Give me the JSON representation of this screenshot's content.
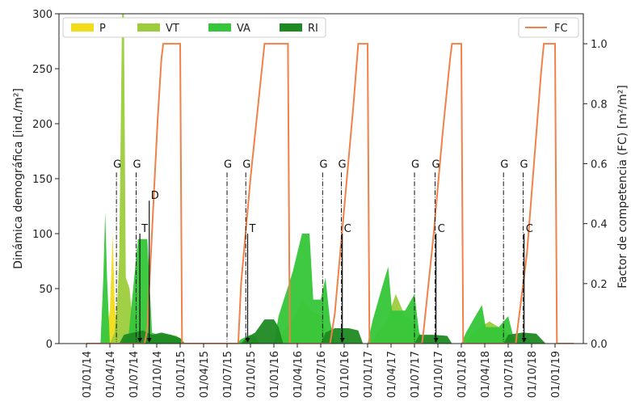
{
  "chart_data": {
    "type": "area",
    "ylabel_left": "Dinámica demográfica [ind./m²]",
    "ylabel_right": "Factor de competencia (FC) [m²/m²]",
    "ylim_left": [
      0,
      300
    ],
    "ylim_right": [
      0,
      1.1
    ],
    "yticks_left": [
      0,
      50,
      100,
      150,
      200,
      250,
      300
    ],
    "yticks_right": [
      "0.0",
      "0.2",
      "0.4",
      "0.6",
      "0.8",
      "1.0"
    ],
    "x_tick_labels": [
      "01/01/14",
      "01/04/14",
      "01/07/14",
      "01/10/14",
      "01/01/15",
      "01/04/15",
      "01/07/15",
      "01/10/15",
      "01/01/16",
      "01/04/16",
      "01/07/16",
      "01/10/16",
      "01/01/17",
      "01/04/17",
      "01/07/17",
      "01/10/17",
      "01/01/18",
      "01/04/18",
      "01/07/18",
      "01/10/18",
      "01/01/19"
    ],
    "legend_left": [
      {
        "name": "P",
        "color": "#f2dc1a"
      },
      {
        "name": "VT",
        "color": "#9ccc3c"
      },
      {
        "name": "VA",
        "color": "#35c639"
      },
      {
        "name": "RI",
        "color": "#1f8a22"
      }
    ],
    "legend_right": [
      {
        "name": "FC",
        "color": "#f08148"
      }
    ],
    "series": [
      {
        "name": "P",
        "color": "#f2dc1a",
        "points": [
          [
            0.2,
            0
          ],
          [
            0.25,
            30
          ],
          [
            0.28,
            100
          ],
          [
            0.3,
            40
          ],
          [
            0.33,
            0
          ],
          [
            0.9,
            0
          ],
          [
            0.93,
            5
          ],
          [
            0.96,
            8
          ],
          [
            1.0,
            2
          ],
          [
            1.05,
            0
          ],
          [
            2.0,
            0
          ],
          [
            2.05,
            5
          ],
          [
            2.15,
            8
          ],
          [
            2.2,
            10
          ],
          [
            2.3,
            8
          ],
          [
            2.5,
            5
          ],
          [
            2.6,
            0
          ],
          [
            3.0,
            0
          ],
          [
            3.05,
            4
          ],
          [
            3.15,
            6
          ],
          [
            3.3,
            5
          ],
          [
            3.5,
            3
          ],
          [
            3.6,
            0
          ],
          [
            4.0,
            0
          ],
          [
            4.05,
            3
          ],
          [
            4.15,
            5
          ],
          [
            4.3,
            4
          ],
          [
            4.5,
            2
          ],
          [
            4.6,
            0
          ]
        ]
      },
      {
        "name": "VT",
        "color": "#9ccc3c",
        "points": [
          [
            0.25,
            0
          ],
          [
            0.3,
            10
          ],
          [
            0.33,
            40
          ],
          [
            0.35,
            80
          ],
          [
            0.38,
            300
          ],
          [
            0.4,
            300
          ],
          [
            0.42,
            60
          ],
          [
            0.46,
            50
          ],
          [
            0.48,
            30
          ],
          [
            0.55,
            20
          ],
          [
            0.6,
            10
          ],
          [
            0.65,
            0
          ],
          [
            2.05,
            0
          ],
          [
            2.1,
            10
          ],
          [
            2.2,
            20
          ],
          [
            2.3,
            40
          ],
          [
            2.4,
            30
          ],
          [
            2.5,
            25
          ],
          [
            2.6,
            0
          ],
          [
            3.05,
            0
          ],
          [
            3.1,
            10
          ],
          [
            3.2,
            20
          ],
          [
            3.3,
            45
          ],
          [
            3.4,
            25
          ],
          [
            3.5,
            20
          ],
          [
            3.6,
            0
          ],
          [
            4.05,
            0
          ],
          [
            4.1,
            8
          ],
          [
            4.2,
            15
          ],
          [
            4.3,
            20
          ],
          [
            4.4,
            15
          ],
          [
            4.5,
            10
          ],
          [
            4.6,
            0
          ]
        ]
      },
      {
        "name": "VA",
        "color": "#35c639",
        "points": [
          [
            0.15,
            0
          ],
          [
            0.18,
            60
          ],
          [
            0.2,
            120
          ],
          [
            0.22,
            60
          ],
          [
            0.25,
            0
          ],
          [
            0.4,
            0
          ],
          [
            0.45,
            8
          ],
          [
            0.55,
            95
          ],
          [
            0.65,
            95
          ],
          [
            0.7,
            10
          ],
          [
            0.75,
            8
          ],
          [
            0.9,
            8
          ],
          [
            0.95,
            7
          ],
          [
            1.0,
            5
          ],
          [
            1.05,
            0
          ],
          [
            1.6,
            0
          ],
          [
            1.65,
            4
          ],
          [
            1.75,
            8
          ],
          [
            1.8,
            6
          ],
          [
            1.85,
            0
          ],
          [
            2.0,
            0
          ],
          [
            2.05,
            25
          ],
          [
            2.2,
            65
          ],
          [
            2.3,
            100
          ],
          [
            2.38,
            100
          ],
          [
            2.42,
            40
          ],
          [
            2.5,
            40
          ],
          [
            2.55,
            60
          ],
          [
            2.6,
            20
          ],
          [
            2.65,
            0
          ],
          [
            3.0,
            0
          ],
          [
            3.05,
            20
          ],
          [
            3.15,
            50
          ],
          [
            3.22,
            70
          ],
          [
            3.26,
            30
          ],
          [
            3.4,
            30
          ],
          [
            3.5,
            45
          ],
          [
            3.55,
            10
          ],
          [
            3.6,
            0
          ],
          [
            4.0,
            0
          ],
          [
            4.05,
            10
          ],
          [
            4.15,
            25
          ],
          [
            4.22,
            35
          ],
          [
            4.26,
            15
          ],
          [
            4.4,
            15
          ],
          [
            4.5,
            25
          ],
          [
            4.55,
            8
          ],
          [
            4.6,
            0
          ]
        ]
      },
      {
        "name": "RI",
        "color": "#1f8a22",
        "points": [
          [
            0.35,
            0
          ],
          [
            0.4,
            8
          ],
          [
            0.5,
            10
          ],
          [
            0.6,
            12
          ],
          [
            0.7,
            8
          ],
          [
            0.8,
            10
          ],
          [
            0.9,
            8
          ],
          [
            1.0,
            5
          ],
          [
            1.05,
            0
          ],
          [
            1.65,
            0
          ],
          [
            1.7,
            5
          ],
          [
            1.8,
            10
          ],
          [
            1.9,
            22
          ],
          [
            2.0,
            22
          ],
          [
            2.05,
            15
          ],
          [
            2.1,
            0
          ],
          [
            2.5,
            0
          ],
          [
            2.55,
            10
          ],
          [
            2.65,
            14
          ],
          [
            2.8,
            14
          ],
          [
            2.9,
            12
          ],
          [
            2.95,
            0
          ],
          [
            3.5,
            0
          ],
          [
            3.55,
            8
          ],
          [
            3.7,
            8
          ],
          [
            3.85,
            7
          ],
          [
            3.9,
            0
          ],
          [
            4.45,
            0
          ],
          [
            4.5,
            8
          ],
          [
            4.65,
            10
          ],
          [
            4.8,
            9
          ],
          [
            4.9,
            0
          ]
        ]
      },
      {
        "name": "FC",
        "color": "#f08148",
        "axis": "right",
        "points": [
          [
            0.0,
            0
          ],
          [
            0.62,
            0
          ],
          [
            0.65,
            0.05
          ],
          [
            0.68,
            0.25
          ],
          [
            0.72,
            0.5
          ],
          [
            0.76,
            0.75
          ],
          [
            0.8,
            0.95
          ],
          [
            0.82,
            1.0
          ],
          [
            1.0,
            1.0
          ],
          [
            1.02,
            0
          ],
          [
            1.62,
            0
          ],
          [
            1.65,
            0.2
          ],
          [
            1.75,
            0.55
          ],
          [
            1.85,
            0.85
          ],
          [
            1.9,
            1.0
          ],
          [
            2.15,
            1.0
          ],
          [
            2.17,
            0
          ],
          [
            2.6,
            0
          ],
          [
            2.65,
            0.1
          ],
          [
            2.75,
            0.45
          ],
          [
            2.85,
            0.8
          ],
          [
            2.9,
            1.0
          ],
          [
            3.0,
            1.0
          ],
          [
            3.02,
            0
          ],
          [
            3.58,
            0
          ],
          [
            3.6,
            0.05
          ],
          [
            3.7,
            0.35
          ],
          [
            3.8,
            0.7
          ],
          [
            3.88,
            0.95
          ],
          [
            3.9,
            1.0
          ],
          [
            4.0,
            1.0
          ],
          [
            4.02,
            0
          ],
          [
            4.58,
            0
          ],
          [
            4.6,
            0.05
          ],
          [
            4.7,
            0.3
          ],
          [
            4.8,
            0.7
          ],
          [
            4.85,
            0.9
          ],
          [
            4.88,
            1.0
          ],
          [
            5.0,
            1.0
          ],
          [
            5.02,
            0
          ],
          [
            5.2,
            0
          ]
        ]
      }
    ],
    "annotations": [
      {
        "x": 0.32,
        "y_top": 160,
        "label": "G"
      },
      {
        "x": 0.53,
        "y_top": 160,
        "label": "G"
      },
      {
        "x": 0.57,
        "y_top": 100,
        "label": "T"
      },
      {
        "x": 0.67,
        "y_top": 130,
        "label": "D"
      },
      {
        "x": 1.5,
        "y_top": 160,
        "label": "G"
      },
      {
        "x": 1.7,
        "y_top": 160,
        "label": "G"
      },
      {
        "x": 1.72,
        "y_top": 100,
        "label": "T"
      },
      {
        "x": 2.52,
        "y_top": 160,
        "label": "G"
      },
      {
        "x": 2.72,
        "y_top": 160,
        "label": "G"
      },
      {
        "x": 2.73,
        "y_top": 100,
        "label": "C"
      },
      {
        "x": 3.5,
        "y_top": 160,
        "label": "G"
      },
      {
        "x": 3.72,
        "y_top": 160,
        "label": "G"
      },
      {
        "x": 3.73,
        "y_top": 100,
        "label": "C"
      },
      {
        "x": 4.45,
        "y_top": 160,
        "label": "G"
      },
      {
        "x": 4.66,
        "y_top": 160,
        "label": "G"
      },
      {
        "x": 4.67,
        "y_top": 100,
        "label": "C"
      }
    ],
    "grid": false,
    "legend_placement": [
      "top-left",
      "top-right"
    ]
  }
}
